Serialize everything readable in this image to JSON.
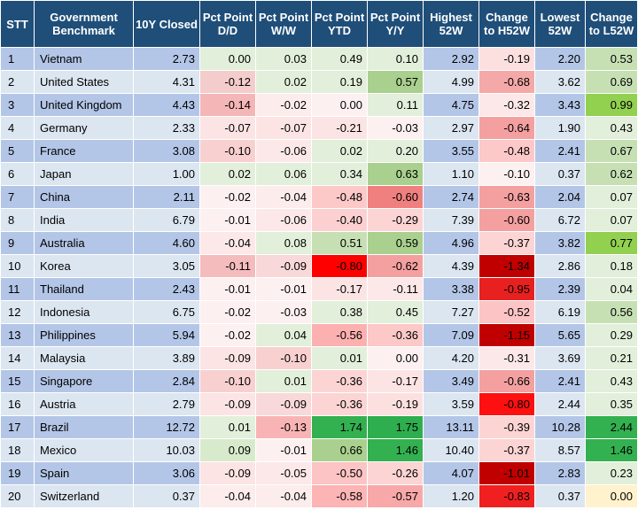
{
  "headers": [
    "STT",
    "Government Benchmark",
    "10Y Closed",
    "Pct Point D/D",
    "Pct Point W/W",
    "Pct Point YTD",
    "Pct Point Y/Y",
    "Highest 52W",
    "Change to H52W",
    "Lowest 52W",
    "Change to L52W"
  ],
  "rows": [
    {
      "stt": "1",
      "name": "Vietnam",
      "closed": "2.73",
      "dd": "0.00",
      "ww": "0.03",
      "ytd": "0.49",
      "yy": "0.10",
      "h52": "2.92",
      "ch52": "-0.19",
      "l52": "2.20",
      "cl52": "0.53"
    },
    {
      "stt": "2",
      "name": "United States",
      "closed": "4.31",
      "dd": "-0.12",
      "ww": "0.02",
      "ytd": "0.19",
      "yy": "0.57",
      "h52": "4.99",
      "ch52": "-0.68",
      "l52": "3.62",
      "cl52": "0.69"
    },
    {
      "stt": "3",
      "name": "United Kingdom",
      "closed": "4.43",
      "dd": "-0.14",
      "ww": "-0.02",
      "ytd": "0.00",
      "yy": "0.11",
      "h52": "4.75",
      "ch52": "-0.32",
      "l52": "3.43",
      "cl52": "0.99"
    },
    {
      "stt": "4",
      "name": "Germany",
      "closed": "2.33",
      "dd": "-0.07",
      "ww": "-0.07",
      "ytd": "-0.21",
      "yy": "-0.03",
      "h52": "2.97",
      "ch52": "-0.64",
      "l52": "1.90",
      "cl52": "0.43"
    },
    {
      "stt": "5",
      "name": "France",
      "closed": "3.08",
      "dd": "-0.10",
      "ww": "-0.06",
      "ytd": "0.02",
      "yy": "0.20",
      "h52": "3.55",
      "ch52": "-0.48",
      "l52": "2.41",
      "cl52": "0.67"
    },
    {
      "stt": "6",
      "name": "Japan",
      "closed": "1.00",
      "dd": "0.02",
      "ww": "0.06",
      "ytd": "0.34",
      "yy": "0.63",
      "h52": "1.10",
      "ch52": "-0.10",
      "l52": "0.37",
      "cl52": "0.62"
    },
    {
      "stt": "7",
      "name": "China",
      "closed": "2.11",
      "dd": "-0.02",
      "ww": "-0.04",
      "ytd": "-0.48",
      "yy": "-0.60",
      "h52": "2.74",
      "ch52": "-0.63",
      "l52": "2.04",
      "cl52": "0.07"
    },
    {
      "stt": "8",
      "name": "India",
      "closed": "6.79",
      "dd": "-0.01",
      "ww": "-0.06",
      "ytd": "-0.40",
      "yy": "-0.29",
      "h52": "7.39",
      "ch52": "-0.60",
      "l52": "6.72",
      "cl52": "0.07"
    },
    {
      "stt": "9",
      "name": "Australia",
      "closed": "4.60",
      "dd": "-0.04",
      "ww": "0.08",
      "ytd": "0.51",
      "yy": "0.59",
      "h52": "4.96",
      "ch52": "-0.37",
      "l52": "3.82",
      "cl52": "0.77"
    },
    {
      "stt": "10",
      "name": "Korea",
      "closed": "3.05",
      "dd": "-0.11",
      "ww": "-0.09",
      "ytd": "-0.80",
      "yy": "-0.62",
      "h52": "4.39",
      "ch52": "-1.34",
      "l52": "2.86",
      "cl52": "0.18"
    },
    {
      "stt": "11",
      "name": "Thailand",
      "closed": "2.43",
      "dd": "-0.01",
      "ww": "-0.01",
      "ytd": "-0.17",
      "yy": "-0.11",
      "h52": "3.38",
      "ch52": "-0.95",
      "l52": "2.39",
      "cl52": "0.04"
    },
    {
      "stt": "12",
      "name": "Indonesia",
      "closed": "6.75",
      "dd": "-0.02",
      "ww": "-0.03",
      "ytd": "0.38",
      "yy": "0.45",
      "h52": "7.27",
      "ch52": "-0.52",
      "l52": "6.19",
      "cl52": "0.56"
    },
    {
      "stt": "13",
      "name": "Philippines",
      "closed": "5.94",
      "dd": "-0.02",
      "ww": "0.04",
      "ytd": "-0.56",
      "yy": "-0.36",
      "h52": "7.09",
      "ch52": "-1.15",
      "l52": "5.65",
      "cl52": "0.29"
    },
    {
      "stt": "14",
      "name": "Malaysia",
      "closed": "3.89",
      "dd": "-0.09",
      "ww": "-0.10",
      "ytd": "0.01",
      "yy": "0.00",
      "h52": "4.20",
      "ch52": "-0.31",
      "l52": "3.69",
      "cl52": "0.21"
    },
    {
      "stt": "15",
      "name": "Singapore",
      "closed": "2.84",
      "dd": "-0.10",
      "ww": "0.01",
      "ytd": "-0.36",
      "yy": "-0.17",
      "h52": "3.49",
      "ch52": "-0.66",
      "l52": "2.41",
      "cl52": "0.43"
    },
    {
      "stt": "16",
      "name": "Austria",
      "closed": "2.79",
      "dd": "-0.09",
      "ww": "-0.09",
      "ytd": "-0.36",
      "yy": "-0.19",
      "h52": "3.59",
      "ch52": "-0.80",
      "l52": "2.44",
      "cl52": "0.35"
    },
    {
      "stt": "17",
      "name": "Brazil",
      "closed": "12.72",
      "dd": "0.01",
      "ww": "-0.13",
      "ytd": "1.74",
      "yy": "1.75",
      "h52": "13.11",
      "ch52": "-0.39",
      "l52": "10.28",
      "cl52": "2.44"
    },
    {
      "stt": "18",
      "name": "Mexico",
      "closed": "10.03",
      "dd": "0.09",
      "ww": "-0.01",
      "ytd": "0.66",
      "yy": "1.46",
      "h52": "10.40",
      "ch52": "-0.37",
      "l52": "8.57",
      "cl52": "1.46"
    },
    {
      "stt": "19",
      "name": "Spain",
      "closed": "3.06",
      "dd": "-0.09",
      "ww": "-0.05",
      "ytd": "-0.50",
      "yy": "-0.26",
      "h52": "4.07",
      "ch52": "-1.01",
      "l52": "2.83",
      "cl52": "0.23"
    },
    {
      "stt": "20",
      "name": "Switzerland",
      "closed": "0.37",
      "dd": "-0.04",
      "ww": "-0.04",
      "ytd": "-0.58",
      "yy": "-0.57",
      "h52": "1.20",
      "ch52": "-0.83",
      "l52": "0.37",
      "cl52": "0.00"
    }
  ],
  "cell_colors": {
    "dd": [
      "#e2efda",
      "#f4cccc",
      "#f4b6b6",
      "#fce4e4",
      "#f8d0d0",
      "#e2efda",
      "#fdf0f0",
      "#fdf0f0",
      "#fce8e8",
      "#f4bcbc",
      "#fdf0f0",
      "#fdf0f0",
      "#fdf0f0",
      "#fce4e4",
      "#f8d0d0",
      "#fce4e4",
      "#e2efda",
      "#d8eacc",
      "#fce4e4",
      "#fcecec"
    ],
    "ww": [
      "#e2efda",
      "#e2efda",
      "#fcecec",
      "#fce4e4",
      "#fce8e8",
      "#e2efda",
      "#fcecec",
      "#fce8e8",
      "#e2efda",
      "#f8d8d8",
      "#fdf0f0",
      "#fdf0f0",
      "#e2efda",
      "#f8d0d0",
      "#e2efda",
      "#f8d8d8",
      "#f8b4b4",
      "#fdf0f0",
      "#fce8e8",
      "#fcecec"
    ],
    "ytd": [
      "#e2efda",
      "#e2efda",
      "#fdf0f0",
      "#fce4e4",
      "#e2efda",
      "#e2efda",
      "#fcc8c8",
      "#fcd0d0",
      "#c6e0b4",
      "#ff0000",
      "#fce4e4",
      "#e2efda",
      "#fcb0b0",
      "#e2efda",
      "#fcd4d4",
      "#fcd4d4",
      "#33b050",
      "#a9d08e",
      "#fcc4c4",
      "#fcb4b4"
    ],
    "yy": [
      "#e2efda",
      "#a9d08e",
      "#e2efda",
      "#fdf0f0",
      "#e2efda",
      "#a9d08e",
      "#f08080",
      "#fcd4d4",
      "#a9d08e",
      "#f4a0a0",
      "#fce8e8",
      "#e2efda",
      "#fcc8c8",
      "#fdf0f0",
      "#fce4e4",
      "#fce0e0",
      "#2eae4e",
      "#33b050",
      "#fcd4d4",
      "#f8a8a8"
    ],
    "ch52": [
      "#fce0e0",
      "#f4a8a8",
      "#fce8e8",
      "#f4a0a0",
      "#fcc8c8",
      "#fdf0f0",
      "#f4a0a0",
      "#f4a0a0",
      "#fcd4d4",
      "#c00000",
      "#e82020",
      "#fcc4c4",
      "#c00000",
      "#fce8e8",
      "#f4a0a0",
      "#ff1010",
      "#fcd4d4",
      "#fcd4d4",
      "#c00000",
      "#f02020"
    ],
    "cl52": [
      "#c6e0b4",
      "#c6e0b4",
      "#92d050",
      "#e2efda",
      "#c6e0b4",
      "#c6e0b4",
      "#e2efda",
      "#e2efda",
      "#92d050",
      "#e2efda",
      "#e2efda",
      "#c6e0b4",
      "#e2efda",
      "#e2efda",
      "#e2efda",
      "#e2efda",
      "#33b050",
      "#33b050",
      "#e2efda",
      "#fff2cc"
    ]
  }
}
